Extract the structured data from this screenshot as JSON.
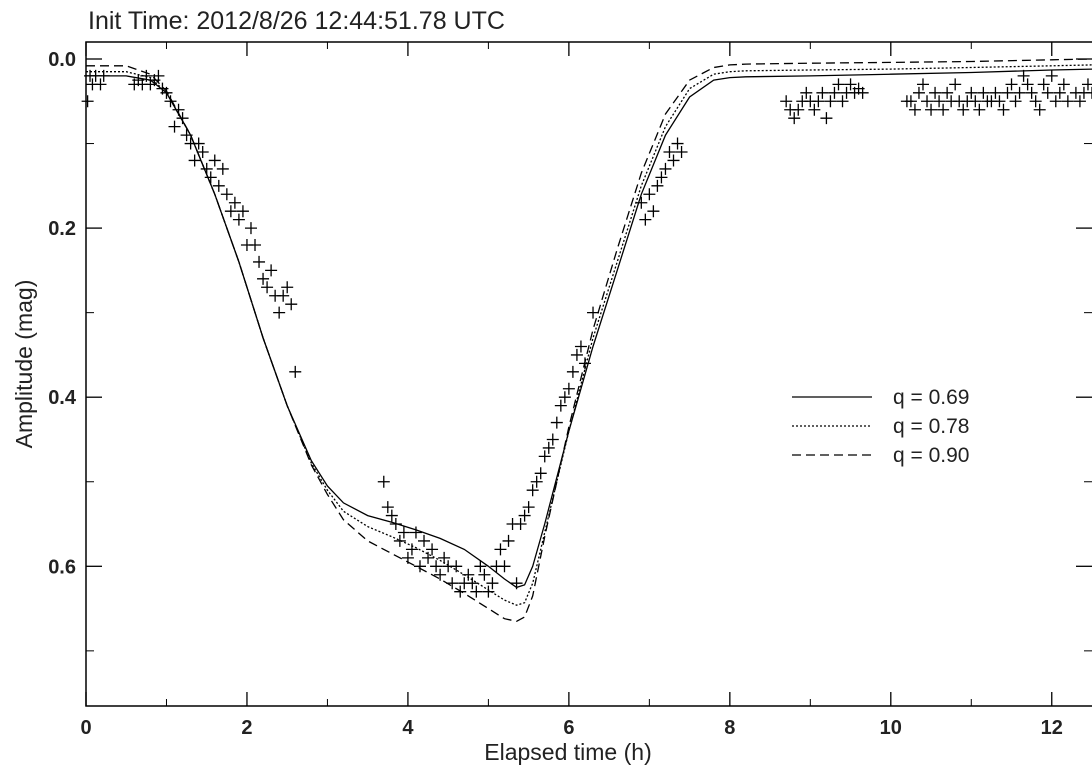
{
  "chart_data": {
    "type": "line",
    "title": "Init Time:  2012/8/26 12:44:51.78 UTC",
    "xlabel": "Elapsed time (h)",
    "ylabel": "Amplitude (mag)",
    "xlim": [
      0,
      12.5
    ],
    "ylim": [
      0.0,
      0.76
    ],
    "y_inverted": true,
    "grid": false,
    "legend_position": "center-right",
    "x_ticks": [
      0,
      2,
      4,
      6,
      8,
      10,
      12
    ],
    "x_tick_labels": [
      "0",
      "2",
      "4",
      "6",
      "8",
      "10",
      "12"
    ],
    "y_ticks": [
      0.0,
      0.2,
      0.4,
      0.6
    ],
    "y_tick_labels": [
      "0.0",
      "0.2",
      "0.4",
      "0.6"
    ],
    "series": [
      {
        "name": "q = 0.69",
        "style": "solid",
        "x": [
          0,
          0.5,
          0.8,
          1.0,
          1.3,
          1.6,
          1.9,
          2.2,
          2.5,
          2.8,
          3.0,
          3.2,
          3.5,
          3.8,
          4.1,
          4.4,
          4.7,
          5.0,
          5.2,
          5.35,
          5.45,
          5.55,
          5.7,
          6.0,
          6.3,
          6.6,
          6.9,
          7.2,
          7.5,
          7.8,
          8.0,
          8.2,
          9.0,
          10.0,
          11.0,
          12.0,
          12.5
        ],
        "y": [
          0.02,
          0.02,
          0.025,
          0.04,
          0.09,
          0.16,
          0.24,
          0.33,
          0.41,
          0.475,
          0.505,
          0.525,
          0.54,
          0.548,
          0.557,
          0.567,
          0.58,
          0.6,
          0.615,
          0.625,
          0.622,
          0.6,
          0.55,
          0.44,
          0.34,
          0.25,
          0.16,
          0.09,
          0.045,
          0.025,
          0.022,
          0.021,
          0.02,
          0.018,
          0.016,
          0.013,
          0.012
        ]
      },
      {
        "name": "q = 0.78",
        "style": "dotted",
        "x": [
          0,
          0.5,
          0.8,
          1.0,
          1.3,
          1.6,
          1.9,
          2.2,
          2.5,
          2.8,
          3.0,
          3.2,
          3.5,
          3.8,
          4.1,
          4.4,
          4.7,
          5.0,
          5.2,
          5.35,
          5.45,
          5.55,
          5.7,
          6.0,
          6.3,
          6.6,
          6.9,
          7.2,
          7.5,
          7.8,
          8.0,
          8.2,
          9.0,
          10.0,
          11.0,
          12.0,
          12.5
        ],
        "y": [
          0.015,
          0.015,
          0.022,
          0.04,
          0.09,
          0.16,
          0.24,
          0.33,
          0.41,
          0.478,
          0.51,
          0.535,
          0.553,
          0.565,
          0.578,
          0.593,
          0.61,
          0.628,
          0.64,
          0.646,
          0.643,
          0.62,
          0.56,
          0.44,
          0.33,
          0.24,
          0.15,
          0.08,
          0.035,
          0.018,
          0.015,
          0.014,
          0.013,
          0.012,
          0.01,
          0.008,
          0.007
        ]
      },
      {
        "name": "q = 0.90",
        "style": "dashed",
        "x": [
          0,
          0.5,
          0.8,
          1.0,
          1.3,
          1.6,
          1.9,
          2.2,
          2.5,
          2.8,
          3.0,
          3.2,
          3.5,
          3.8,
          4.1,
          4.4,
          4.7,
          5.0,
          5.2,
          5.35,
          5.45,
          5.55,
          5.7,
          6.0,
          6.3,
          6.6,
          6.9,
          7.2,
          7.5,
          7.8,
          8.0,
          8.2,
          9.0,
          10.0,
          11.0,
          12.0,
          12.5
        ],
        "y": [
          0.008,
          0.008,
          0.018,
          0.038,
          0.09,
          0.16,
          0.24,
          0.33,
          0.41,
          0.48,
          0.515,
          0.545,
          0.57,
          0.585,
          0.6,
          0.615,
          0.632,
          0.65,
          0.662,
          0.665,
          0.66,
          0.635,
          0.565,
          0.435,
          0.32,
          0.225,
          0.135,
          0.065,
          0.025,
          0.01,
          0.007,
          0.006,
          0.005,
          0.004,
          0.003,
          0.001,
          0.0
        ]
      },
      {
        "name": "",
        "style": "markers",
        "marker": "plus",
        "x": [
          0.02,
          0.05,
          0.08,
          0.12,
          0.18,
          0.22,
          0.6,
          0.65,
          0.7,
          0.75,
          0.8,
          0.85,
          0.9,
          0.95,
          1.0,
          1.05,
          1.1,
          1.15,
          1.2,
          1.25,
          1.3,
          1.35,
          1.4,
          1.45,
          1.5,
          1.55,
          1.6,
          1.65,
          1.7,
          1.75,
          1.8,
          1.85,
          1.9,
          1.95,
          2.0,
          2.05,
          2.1,
          2.15,
          2.2,
          2.25,
          2.3,
          2.35,
          2.4,
          2.45,
          2.5,
          2.55,
          2.6,
          3.7,
          3.75,
          3.8,
          3.85,
          3.9,
          3.95,
          4.0,
          4.05,
          4.1,
          4.15,
          4.2,
          4.25,
          4.3,
          4.35,
          4.4,
          4.45,
          4.5,
          4.55,
          4.6,
          4.65,
          4.7,
          4.75,
          4.8,
          4.85,
          4.9,
          4.95,
          5.0,
          5.05,
          5.1,
          5.15,
          5.2,
          5.25,
          5.3,
          5.35,
          5.4,
          5.45,
          5.5,
          5.55,
          5.6,
          5.65,
          5.7,
          5.75,
          5.8,
          5.85,
          5.9,
          5.95,
          6.0,
          6.05,
          6.1,
          6.15,
          6.2,
          6.3,
          6.9,
          6.95,
          7.0,
          7.05,
          7.1,
          7.15,
          7.2,
          7.25,
          7.3,
          7.35,
          7.4,
          8.7,
          8.75,
          8.8,
          8.85,
          8.9,
          8.95,
          9.0,
          9.05,
          9.1,
          9.15,
          9.2,
          9.25,
          9.3,
          9.35,
          9.4,
          9.45,
          9.5,
          9.55,
          9.6,
          9.65,
          10.2,
          10.25,
          10.3,
          10.35,
          10.4,
          10.45,
          10.5,
          10.55,
          10.6,
          10.65,
          10.7,
          10.75,
          10.8,
          10.85,
          10.9,
          10.95,
          11.0,
          11.05,
          11.1,
          11.15,
          11.2,
          11.25,
          11.3,
          11.35,
          11.4,
          11.45,
          11.5,
          11.55,
          11.6,
          11.65,
          11.7,
          11.75,
          11.8,
          11.85,
          11.9,
          11.95,
          12.0,
          12.05,
          12.1,
          12.15,
          12.2,
          12.3,
          12.35,
          12.4,
          12.45,
          12.5
        ],
        "y": [
          0.05,
          0.02,
          0.03,
          0.02,
          0.03,
          0.02,
          0.03,
          0.025,
          0.03,
          0.02,
          0.03,
          0.025,
          0.02,
          0.035,
          0.04,
          0.05,
          0.08,
          0.06,
          0.07,
          0.09,
          0.1,
          0.12,
          0.1,
          0.11,
          0.13,
          0.14,
          0.12,
          0.15,
          0.13,
          0.16,
          0.18,
          0.17,
          0.19,
          0.18,
          0.22,
          0.2,
          0.22,
          0.24,
          0.26,
          0.27,
          0.25,
          0.28,
          0.3,
          0.28,
          0.27,
          0.29,
          0.37,
          0.5,
          0.53,
          0.54,
          0.55,
          0.57,
          0.56,
          0.59,
          0.58,
          0.56,
          0.6,
          0.57,
          0.59,
          0.58,
          0.6,
          0.61,
          0.59,
          0.6,
          0.62,
          0.6,
          0.63,
          0.62,
          0.61,
          0.62,
          0.63,
          0.6,
          0.61,
          0.63,
          0.62,
          0.6,
          0.58,
          0.6,
          0.57,
          0.55,
          0.62,
          0.55,
          0.54,
          0.53,
          0.51,
          0.5,
          0.49,
          0.47,
          0.46,
          0.45,
          0.43,
          0.41,
          0.4,
          0.39,
          0.37,
          0.35,
          0.34,
          0.36,
          0.3,
          0.17,
          0.19,
          0.16,
          0.18,
          0.15,
          0.14,
          0.13,
          0.11,
          0.12,
          0.1,
          0.11,
          0.05,
          0.06,
          0.07,
          0.06,
          0.05,
          0.04,
          0.05,
          0.06,
          0.05,
          0.04,
          0.07,
          0.05,
          0.04,
          0.03,
          0.05,
          0.04,
          0.03,
          0.04,
          0.035,
          0.04,
          0.05,
          0.05,
          0.06,
          0.04,
          0.03,
          0.05,
          0.06,
          0.04,
          0.05,
          0.06,
          0.04,
          0.05,
          0.03,
          0.05,
          0.06,
          0.05,
          0.04,
          0.05,
          0.06,
          0.04,
          0.05,
          0.05,
          0.04,
          0.05,
          0.06,
          0.04,
          0.03,
          0.05,
          0.04,
          0.02,
          0.03,
          0.04,
          0.05,
          0.06,
          0.03,
          0.04,
          0.02,
          0.05,
          0.04,
          0.03,
          0.05,
          0.04,
          0.05,
          0.04,
          0.03,
          0.04
        ]
      }
    ]
  }
}
